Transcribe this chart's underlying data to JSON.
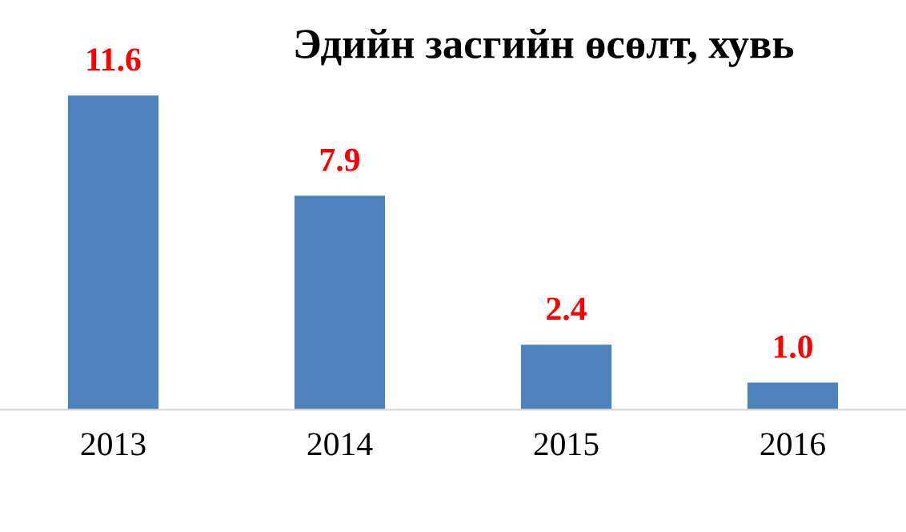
{
  "chart_data": {
    "type": "bar",
    "title": "Эдийн засгийн өсөлт, хувь",
    "categories": [
      "2013",
      "2014",
      "2015",
      "2016"
    ],
    "values": [
      11.6,
      7.9,
      2.4,
      1.0
    ],
    "value_labels": [
      "11.6",
      "7.9",
      "2.4",
      "1.0"
    ],
    "color": "#4f81bd",
    "grid": false,
    "legend": false
  }
}
